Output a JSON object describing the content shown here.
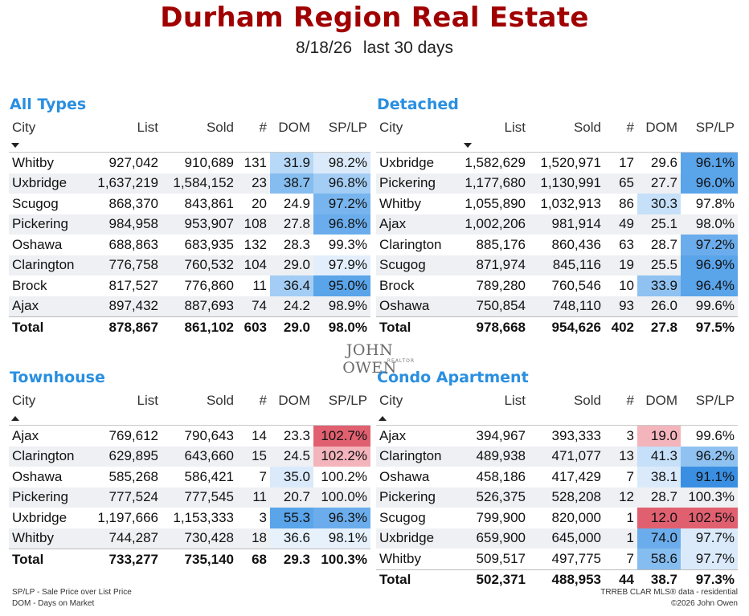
{
  "header": {
    "title": "Durham Region Real Estate",
    "date": "8/18/26",
    "period": "last 30 days"
  },
  "columns": {
    "city": "City",
    "list": "List",
    "sold": "Sold",
    "count": "#",
    "dom": "DOM",
    "splp": "SP/LP"
  },
  "tables": [
    {
      "title": "All Types",
      "sort_dir": "down",
      "sort_col": "city",
      "rows": [
        {
          "city": "Whitby",
          "list": "927,042",
          "sold": "910,689",
          "count": "131",
          "dom": "31.9",
          "splp": "98.2%",
          "dom_bg": "#b7d9f7",
          "splp_bg": "#dbeafa"
        },
        {
          "city": "Uxbridge",
          "list": "1,637,219",
          "sold": "1,584,152",
          "count": "23",
          "dom": "38.7",
          "splp": "96.8%",
          "dom_bg": "#86bdf0",
          "splp_bg": "#a3cdf4"
        },
        {
          "city": "Scugog",
          "list": "868,370",
          "sold": "843,861",
          "count": "20",
          "dom": "24.9",
          "splp": "97.2%",
          "dom_bg": "",
          "splp_bg": "#78b5ee"
        },
        {
          "city": "Pickering",
          "list": "984,958",
          "sold": "953,907",
          "count": "108",
          "dom": "27.8",
          "splp": "96.8%",
          "dom_bg": "",
          "splp_bg": "#6badec"
        },
        {
          "city": "Oshawa",
          "list": "688,863",
          "sold": "683,935",
          "count": "132",
          "dom": "28.3",
          "splp": "99.3%",
          "dom_bg": "",
          "splp_bg": ""
        },
        {
          "city": "Clarington",
          "list": "776,758",
          "sold": "760,532",
          "count": "104",
          "dom": "29.0",
          "splp": "97.9%",
          "dom_bg": "",
          "splp_bg": "#e2eefb"
        },
        {
          "city": "Brock",
          "list": "817,527",
          "sold": "776,860",
          "count": "11",
          "dom": "36.4",
          "splp": "95.0%",
          "dom_bg": "#a3cdf4",
          "splp_bg": "#5aa4ea"
        },
        {
          "city": "Ajax",
          "list": "897,432",
          "sold": "887,693",
          "count": "74",
          "dom": "24.2",
          "splp": "98.9%",
          "dom_bg": "",
          "splp_bg": ""
        }
      ],
      "total": {
        "label": "Total",
        "list": "878,867",
        "sold": "861,102",
        "count": "603",
        "dom": "29.0",
        "splp": "98.0%"
      }
    },
    {
      "title": "Detached",
      "sort_dir": "down",
      "sort_col": "list",
      "rows": [
        {
          "city": "Uxbridge",
          "list": "1,582,629",
          "sold": "1,520,971",
          "count": "17",
          "dom": "29.6",
          "splp": "96.1%",
          "dom_bg": "",
          "splp_bg": "#5aa4ea"
        },
        {
          "city": "Pickering",
          "list": "1,177,680",
          "sold": "1,130,991",
          "count": "65",
          "dom": "27.7",
          "splp": "96.0%",
          "dom_bg": "",
          "splp_bg": "#5aa4ea"
        },
        {
          "city": "Whitby",
          "list": "1,055,890",
          "sold": "1,032,913",
          "count": "86",
          "dom": "30.3",
          "splp": "97.8%",
          "dom_bg": "#c5e0f8",
          "splp_bg": ""
        },
        {
          "city": "Ajax",
          "list": "1,002,206",
          "sold": "981,914",
          "count": "49",
          "dom": "25.1",
          "splp": "98.0%",
          "dom_bg": "",
          "splp_bg": ""
        },
        {
          "city": "Clarington",
          "list": "885,176",
          "sold": "860,436",
          "count": "63",
          "dom": "28.7",
          "splp": "97.2%",
          "dom_bg": "",
          "splp_bg": "#6badec"
        },
        {
          "city": "Scugog",
          "list": "871,974",
          "sold": "845,116",
          "count": "19",
          "dom": "25.5",
          "splp": "96.9%",
          "dom_bg": "",
          "splp_bg": "#5aa4ea"
        },
        {
          "city": "Brock",
          "list": "789,280",
          "sold": "760,546",
          "count": "10",
          "dom": "33.9",
          "splp": "96.4%",
          "dom_bg": "#8fc2f1",
          "splp_bg": "#5aa4ea"
        },
        {
          "city": "Oshawa",
          "list": "750,854",
          "sold": "748,110",
          "count": "93",
          "dom": "26.0",
          "splp": "99.6%",
          "dom_bg": "",
          "splp_bg": ""
        }
      ],
      "total": {
        "label": "Total",
        "list": "978,668",
        "sold": "954,626",
        "count": "402",
        "dom": "27.8",
        "splp": "97.5%"
      }
    },
    {
      "title": "Townhouse",
      "sort_dir": "up",
      "sort_col": "city",
      "rows": [
        {
          "city": "Ajax",
          "list": "769,612",
          "sold": "790,643",
          "count": "14",
          "dom": "23.3",
          "splp": "102.7%",
          "dom_bg": "",
          "splp_bg": "#e06070"
        },
        {
          "city": "Clarington",
          "list": "629,895",
          "sold": "643,660",
          "count": "15",
          "dom": "24.5",
          "splp": "102.2%",
          "dom_bg": "",
          "splp_bg": "#f3b4bc"
        },
        {
          "city": "Oshawa",
          "list": "585,268",
          "sold": "586,421",
          "count": "7",
          "dom": "35.0",
          "splp": "100.2%",
          "dom_bg": "#dbeafa",
          "splp_bg": ""
        },
        {
          "city": "Pickering",
          "list": "777,524",
          "sold": "777,545",
          "count": "11",
          "dom": "20.7",
          "splp": "100.0%",
          "dom_bg": "",
          "splp_bg": ""
        },
        {
          "city": "Uxbridge",
          "list": "1,197,666",
          "sold": "1,153,333",
          "count": "3",
          "dom": "55.3",
          "splp": "96.3%",
          "dom_bg": "#5aa4ea",
          "splp_bg": "#6badec"
        },
        {
          "city": "Whitby",
          "list": "744,287",
          "sold": "730,428",
          "count": "18",
          "dom": "36.6",
          "splp": "98.1%",
          "dom_bg": "#e6f1fc",
          "splp_bg": "#e6f1fc"
        }
      ],
      "total": {
        "label": "Total",
        "list": "733,277",
        "sold": "735,140",
        "count": "68",
        "dom": "29.3",
        "splp": "100.3%"
      }
    },
    {
      "title": "Condo Apartment",
      "sort_dir": "up",
      "sort_col": "city",
      "rows": [
        {
          "city": "Ajax",
          "list": "394,967",
          "sold": "393,333",
          "count": "3",
          "dom": "19.0",
          "splp": "99.6%",
          "dom_bg": "#f3b4bc",
          "splp_bg": ""
        },
        {
          "city": "Clarington",
          "list": "489,938",
          "sold": "471,077",
          "count": "13",
          "dom": "41.3",
          "splp": "96.2%",
          "dom_bg": "#c5e0f8",
          "splp_bg": "#8fc2f1"
        },
        {
          "city": "Oshawa",
          "list": "458,186",
          "sold": "417,429",
          "count": "7",
          "dom": "38.1",
          "splp": "91.1%",
          "dom_bg": "#dbeafa",
          "splp_bg": "#3a8fe2"
        },
        {
          "city": "Pickering",
          "list": "526,375",
          "sold": "528,208",
          "count": "12",
          "dom": "28.7",
          "splp": "100.3%",
          "dom_bg": "",
          "splp_bg": ""
        },
        {
          "city": "Scugog",
          "list": "799,900",
          "sold": "820,000",
          "count": "1",
          "dom": "12.0",
          "splp": "102.5%",
          "dom_bg": "#e06070",
          "splp_bg": "#e06070"
        },
        {
          "city": "Uxbridge",
          "list": "659,900",
          "sold": "645,000",
          "count": "1",
          "dom": "74.0",
          "splp": "97.7%",
          "dom_bg": "#6badec",
          "splp_bg": "#dbeafa"
        },
        {
          "city": "Whitby",
          "list": "509,517",
          "sold": "497,775",
          "count": "7",
          "dom": "58.6",
          "splp": "97.7%",
          "dom_bg": "#86bdf0",
          "splp_bg": "#dbeafa"
        }
      ],
      "total": {
        "label": "Total",
        "list": "502,371",
        "sold": "488,953",
        "count": "44",
        "dom": "38.7",
        "splp": "97.3%"
      }
    }
  ],
  "logo": {
    "name": "JOHN OWEN",
    "sub": "REALTOR"
  },
  "footer": {
    "legend_splp": "SP/LP - Sale Price over List Price",
    "legend_dom": "DOM - Days on Market",
    "source": "TRREB CLAR MLS® data - residential",
    "copyright": "©2026 John Owen"
  }
}
